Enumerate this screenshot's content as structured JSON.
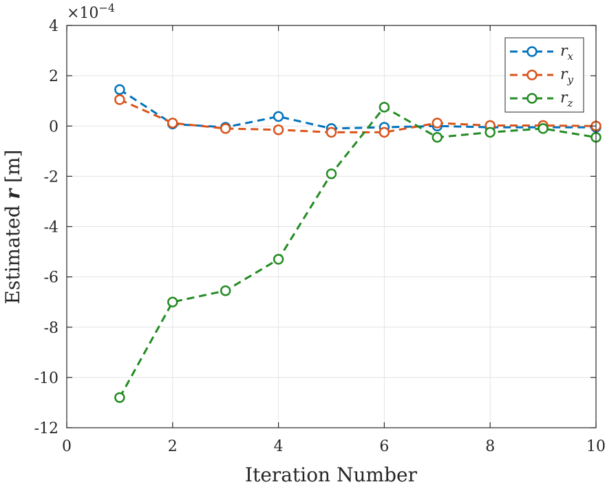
{
  "chart_data": {
    "type": "line",
    "xlabel": "Iteration Number",
    "ylabel_prefix": "Estimated ",
    "ylabel_symbol": "r",
    "ylabel_suffix": " [m]",
    "exponent_base": "×10",
    "exponent_power": "−4",
    "xlim": [
      0,
      10
    ],
    "ylim": [
      -12,
      4
    ],
    "x_ticks": [
      0,
      2,
      4,
      6,
      8,
      10
    ],
    "y_ticks": [
      -12,
      -10,
      -8,
      -6,
      -4,
      -2,
      0,
      2,
      4
    ],
    "grid": true,
    "legend_position": "top-right",
    "x": [
      1,
      2,
      3,
      4,
      5,
      6,
      7,
      8,
      9,
      10
    ],
    "series": [
      {
        "name": "r",
        "subscript": "x",
        "color": "#0072BD",
        "values": [
          1.45,
          0.08,
          -0.05,
          0.38,
          -0.1,
          -0.05,
          0.0,
          -0.05,
          -0.05,
          -0.05
        ]
      },
      {
        "name": "r",
        "subscript": "y",
        "color": "#D95319",
        "values": [
          1.05,
          0.12,
          -0.1,
          -0.15,
          -0.25,
          -0.25,
          0.12,
          0.02,
          0.02,
          0.0
        ]
      },
      {
        "name": "r",
        "subscript": "z",
        "color": "#228B22",
        "values": [
          -10.8,
          -7.0,
          -6.55,
          -5.3,
          -1.9,
          0.75,
          -0.45,
          -0.25,
          -0.1,
          -0.45
        ]
      }
    ]
  }
}
